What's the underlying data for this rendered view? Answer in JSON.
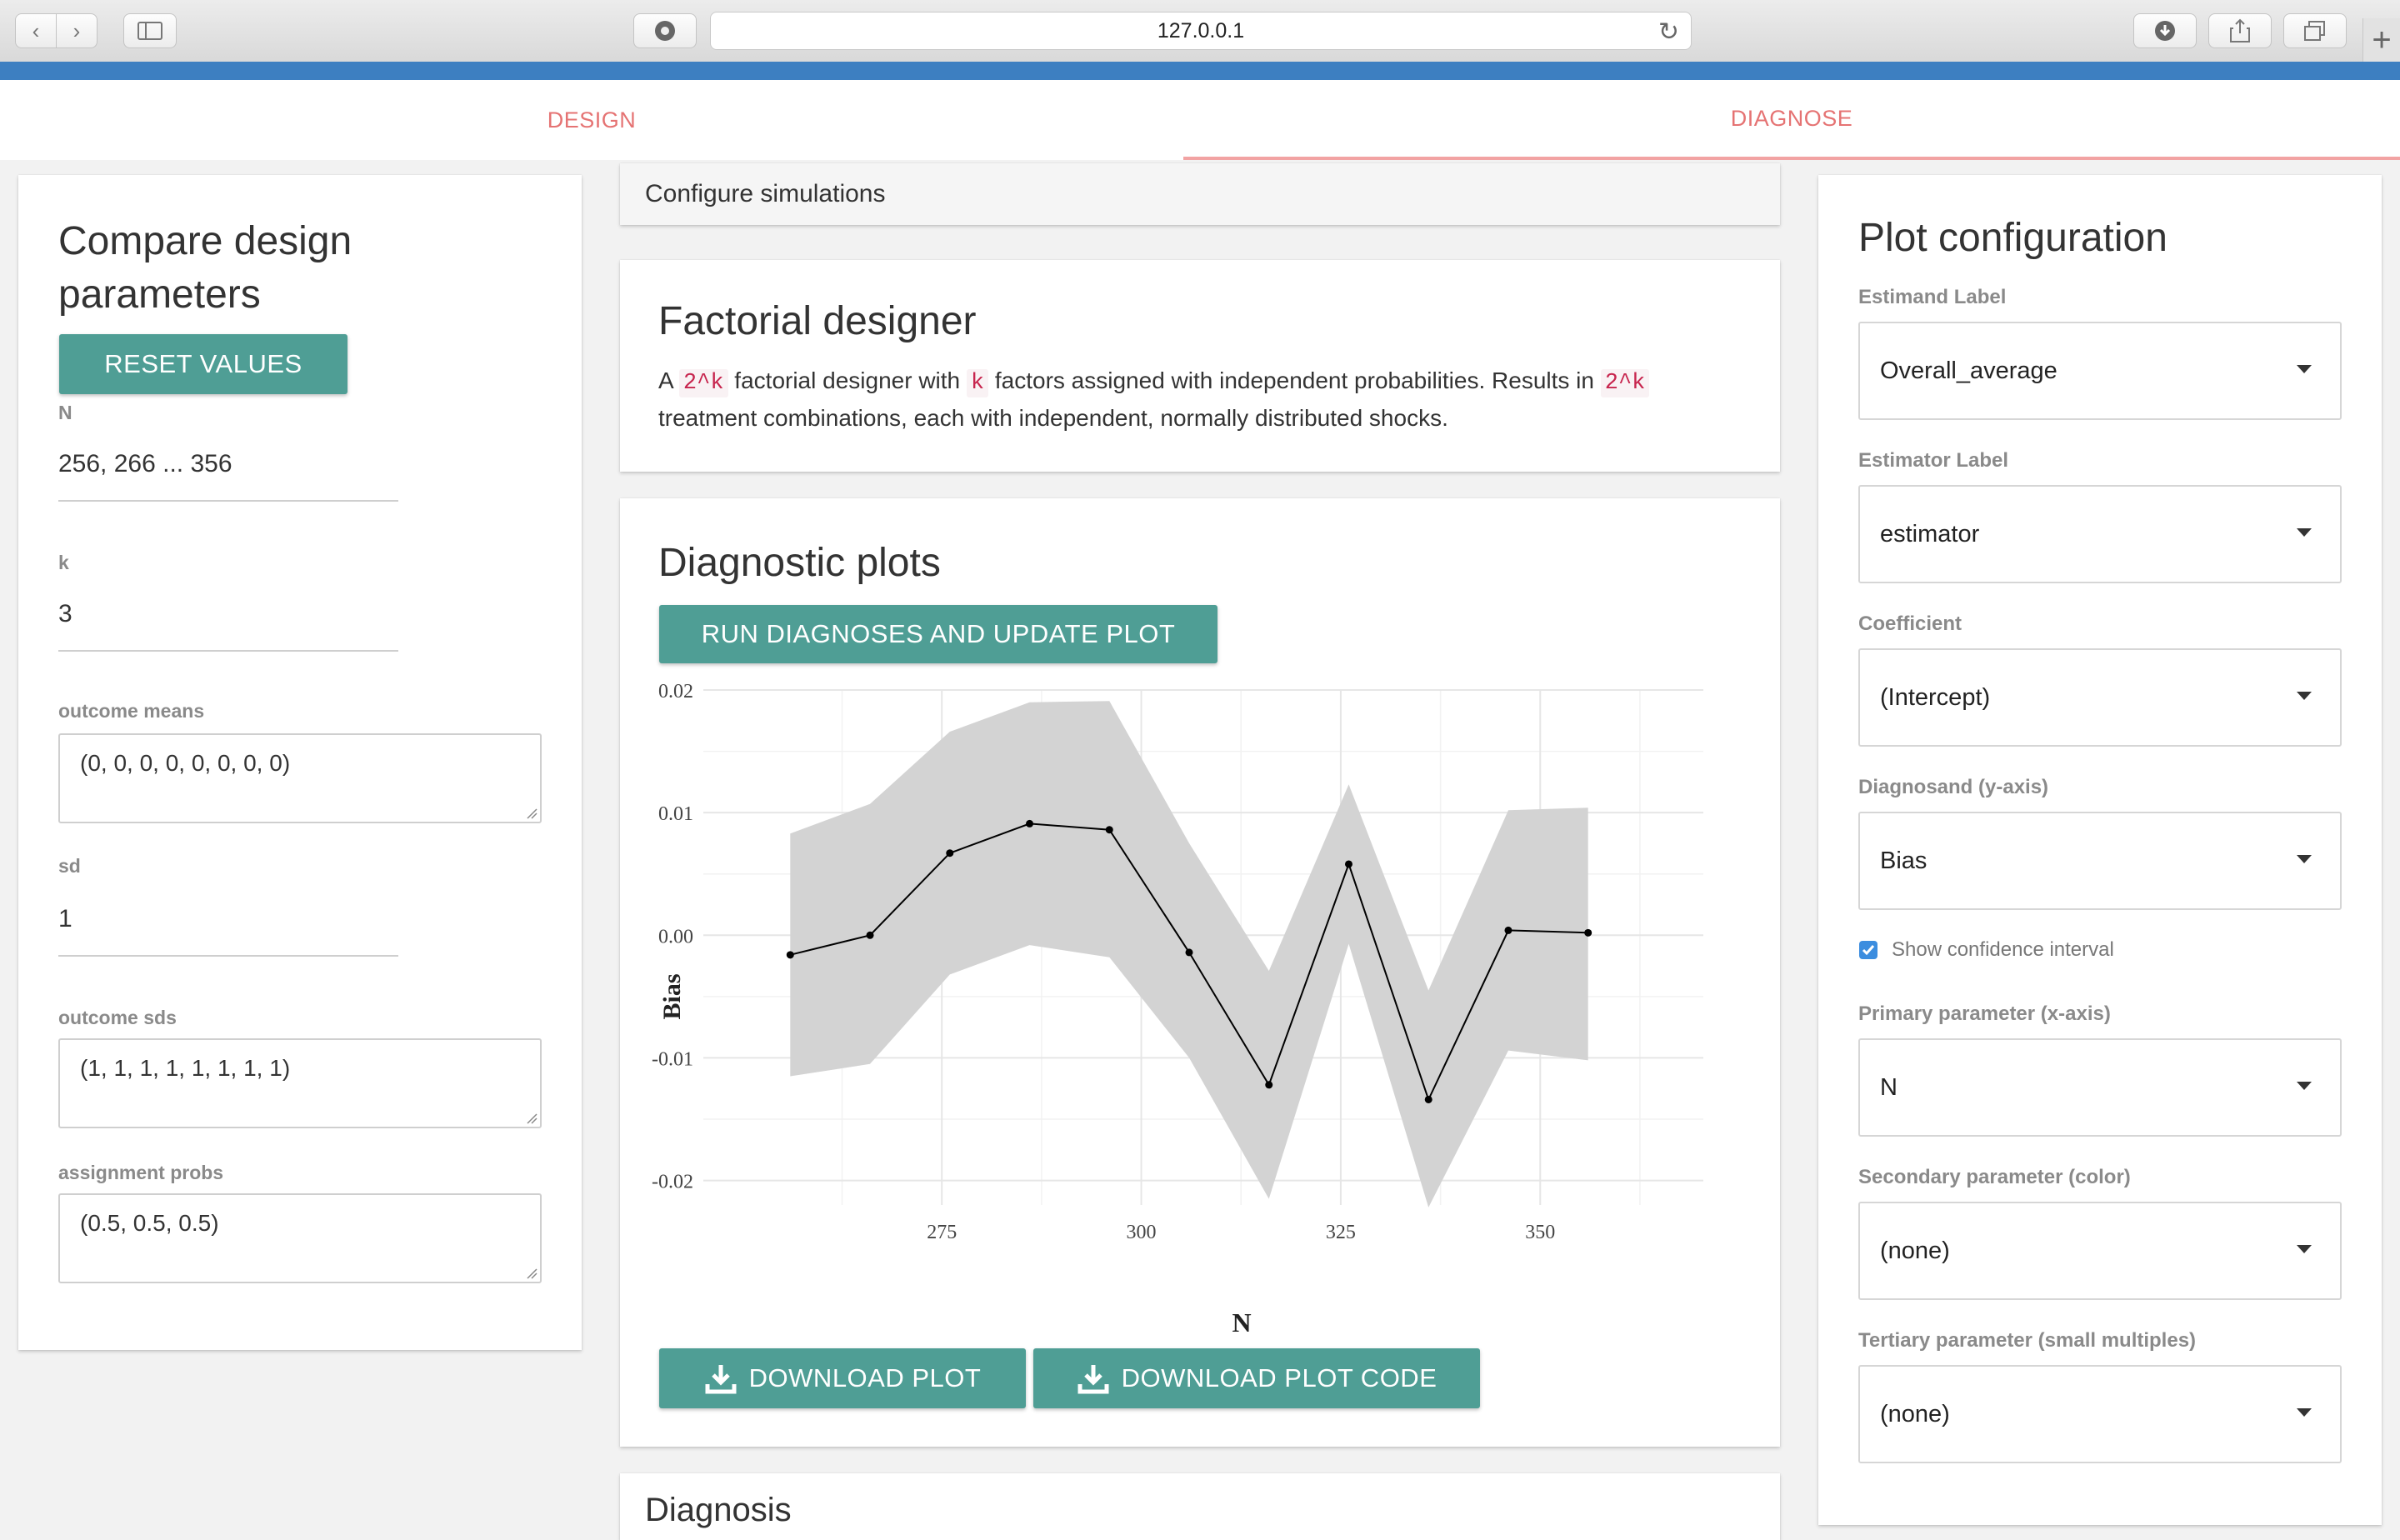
{
  "browser": {
    "address": "127.0.0.1"
  },
  "tabs": [
    {
      "label": "DESIGN",
      "active": false
    },
    {
      "label": "DIAGNOSE",
      "active": true
    }
  ],
  "left_panel": {
    "title_line1": "Compare design",
    "title_line2": "parameters",
    "reset_button": "RESET VALUES",
    "fields": {
      "n_label": "N",
      "n_value": "256, 266 ... 356",
      "k_label": "k",
      "k_value": "3",
      "outcome_means_label": "outcome means",
      "outcome_means_value": "(0, 0, 0, 0, 0, 0, 0, 0)",
      "sd_label": "sd",
      "sd_value": "1",
      "outcome_sds_label": "outcome sds",
      "outcome_sds_value": "(1, 1, 1, 1, 1, 1, 1, 1)",
      "assignment_probs_label": "assignment probs",
      "assignment_probs_value": "(0.5, 0.5, 0.5)"
    }
  },
  "center": {
    "configure_header": "Configure simulations",
    "designer_title": "Factorial designer",
    "desc": {
      "p1": "A ",
      "code1": "2^k",
      "p2": " factorial designer with ",
      "code2": "k",
      "p3": " factors assigned with independent probabilities. Results in ",
      "code3": "2^k",
      "p4": " treatment combinations, each with independent, normally distributed shocks."
    },
    "diag_title": "Diagnostic plots",
    "run_button": "RUN DIAGNOSES AND UPDATE PLOT",
    "download_plot": "DOWNLOAD PLOT",
    "download_code": "DOWNLOAD PLOT CODE",
    "next_card_title": "Diagnosis"
  },
  "chart_data": {
    "type": "line",
    "xlabel": "N",
    "ylabel": "Bias",
    "xlim": [
      252,
      360
    ],
    "ylim": [
      -0.022,
      0.02
    ],
    "xticks": [
      275,
      300,
      325,
      350
    ],
    "yticks": [
      0.02,
      0.01,
      0.0,
      -0.01,
      -0.02
    ],
    "ytick_labels": [
      "0.02",
      "0.01",
      "0.00",
      "-0.01",
      "-0.02"
    ],
    "grid": true,
    "x": [
      256,
      266,
      276,
      286,
      296,
      306,
      316,
      326,
      336,
      346,
      356
    ],
    "y": [
      -0.0016,
      0.0,
      0.0067,
      0.0091,
      0.0086,
      -0.0014,
      -0.0122,
      0.0058,
      -0.0134,
      0.0004,
      0.0002
    ],
    "ci_lower": [
      -0.0115,
      -0.0105,
      -0.0032,
      -0.0008,
      -0.0018,
      -0.01,
      -0.0215,
      -0.0007,
      -0.0222,
      -0.0094,
      -0.0102
    ],
    "ci_upper": [
      0.0083,
      0.0107,
      0.0166,
      0.019,
      0.0191,
      0.0075,
      -0.0029,
      0.0123,
      -0.0045,
      0.0102,
      0.0104
    ],
    "line_color": "#000000",
    "band_color": "#d3d3d3"
  },
  "right_panel": {
    "title": "Plot configuration",
    "estimand_label": "Estimand Label",
    "estimand_value": "Overall_average",
    "estimator_label": "Estimator Label",
    "estimator_value": "estimator",
    "coefficient_label": "Coefficient",
    "coefficient_value": "(Intercept)",
    "diagnosand_label": "Diagnosand (y-axis)",
    "diagnosand_value": "Bias",
    "show_ci_label": "Show confidence interval",
    "show_ci_checked": true,
    "primary_label": "Primary parameter (x-axis)",
    "primary_value": "N",
    "secondary_label": "Secondary parameter (color)",
    "secondary_value": "(none)",
    "tertiary_label": "Tertiary parameter (small multiples)",
    "tertiary_value": "(none)"
  },
  "colors": {
    "accent_teal": "#4f9e95",
    "tab_text": "#e57373",
    "browser_strip": "#3d7fc1"
  }
}
